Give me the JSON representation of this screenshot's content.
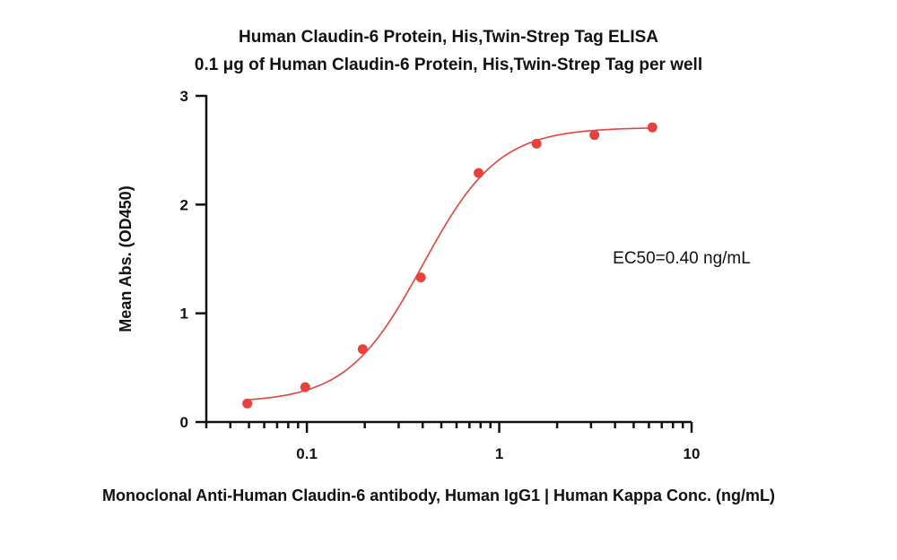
{
  "chart_data": {
    "type": "scatter",
    "title": "Human Claudin-6 Protein, His,Twin-Strep Tag ELISA",
    "subtitle": "0.1 μg of Human Claudin-6 Protein, His,Twin-Strep Tag per well",
    "xlabel": "Monoclonal Anti-Human Claudin-6 antibody, Human IgG1 | Human Kappa Conc. (ng/mL)",
    "ylabel": "Mean Abs. (OD450)",
    "x_scale": "log",
    "xlim": [
      0.03,
      10
    ],
    "ylim": [
      0,
      3
    ],
    "x_ticks": [
      0.1,
      1,
      10
    ],
    "x_tick_labels": [
      "0.1",
      "1",
      "10"
    ],
    "y_ticks": [
      0,
      1,
      2,
      3
    ],
    "y_tick_labels": [
      "0",
      "1",
      "2",
      "3"
    ],
    "grid": false,
    "series_color": "#e8413c",
    "points": [
      {
        "x": 0.049,
        "y": 0.17
      },
      {
        "x": 0.098,
        "y": 0.32
      },
      {
        "x": 0.195,
        "y": 0.67
      },
      {
        "x": 0.391,
        "y": 1.33
      },
      {
        "x": 0.781,
        "y": 2.29
      },
      {
        "x": 1.563,
        "y": 2.56
      },
      {
        "x": 3.125,
        "y": 2.64
      },
      {
        "x": 6.25,
        "y": 2.71
      }
    ],
    "fit": {
      "model": "4PL",
      "bottom": 0.18,
      "top": 2.71,
      "ec50": 0.4,
      "hill": 2.2
    },
    "annotation": "EC50=0.40 ng/mL"
  }
}
